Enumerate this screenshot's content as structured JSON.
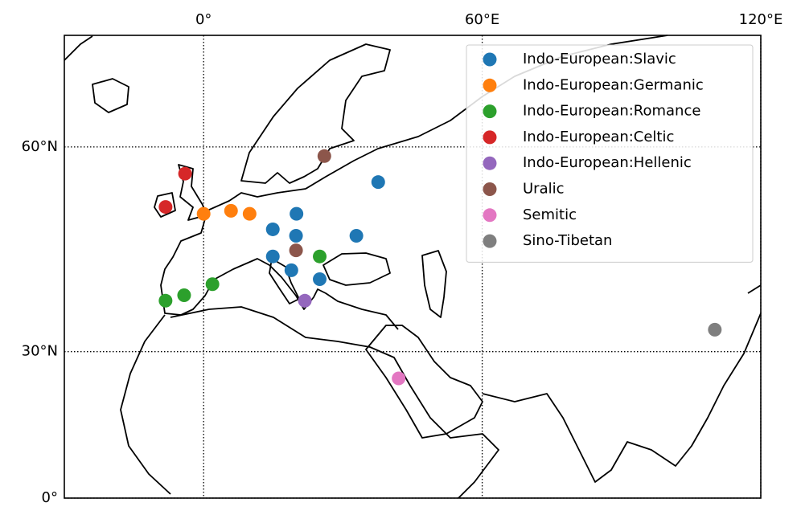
{
  "chart_data": {
    "type": "scatter",
    "projection": "mercator",
    "grid": true,
    "legend": "upper right",
    "xlim": [
      -30,
      120
    ],
    "ylim": [
      0,
      70
    ],
    "xticks": [
      {
        "value": 0,
        "label": "0°"
      },
      {
        "value": 60,
        "label": "60°E"
      },
      {
        "value": 120,
        "label": "120°E"
      }
    ],
    "yticks": [
      {
        "value": 0,
        "label": "0°"
      },
      {
        "value": 30,
        "label": "30°N"
      },
      {
        "value": 60,
        "label": "60°N"
      }
    ],
    "series": [
      {
        "name": "Indo-European:Slavic",
        "color": "#1f77b4",
        "x": [
          37.6,
          14.9,
          20,
          19.9,
          14.9,
          18.9,
          32.9,
          25
        ],
        "y": [
          56,
          49.9,
          52,
          49,
          46,
          43.9,
          49,
          42.5
        ]
      },
      {
        "name": "Indo-European:Germanic",
        "color": "#ff7f0e",
        "x": [
          0,
          5.9,
          9.9
        ],
        "y": [
          52,
          52.4,
          52
        ]
      },
      {
        "name": "Indo-European:Romance",
        "color": "#2ca02c",
        "x": [
          -8.2,
          -4.2,
          1.9,
          25
        ],
        "y": [
          39,
          39.9,
          41.7,
          46
        ]
      },
      {
        "name": "Indo-European:Celtic",
        "color": "#d62728",
        "x": [
          -4,
          -8.2
        ],
        "y": [
          57,
          52.9
        ]
      },
      {
        "name": "Indo-European:Hellenic",
        "color": "#9467bd",
        "x": [
          21.8
        ],
        "y": [
          39
        ]
      },
      {
        "name": "Uralic",
        "color": "#8c564b",
        "x": [
          26,
          19.9
        ],
        "y": [
          59,
          46.9
        ]
      },
      {
        "name": "Semitic",
        "color": "#e377c2",
        "x": [
          42
        ],
        "y": [
          24.9
        ]
      },
      {
        "name": "Sino-Tibetan",
        "color": "#7f7f7f",
        "x": [
          110.1
        ],
        "y": [
          34
        ]
      }
    ]
  }
}
